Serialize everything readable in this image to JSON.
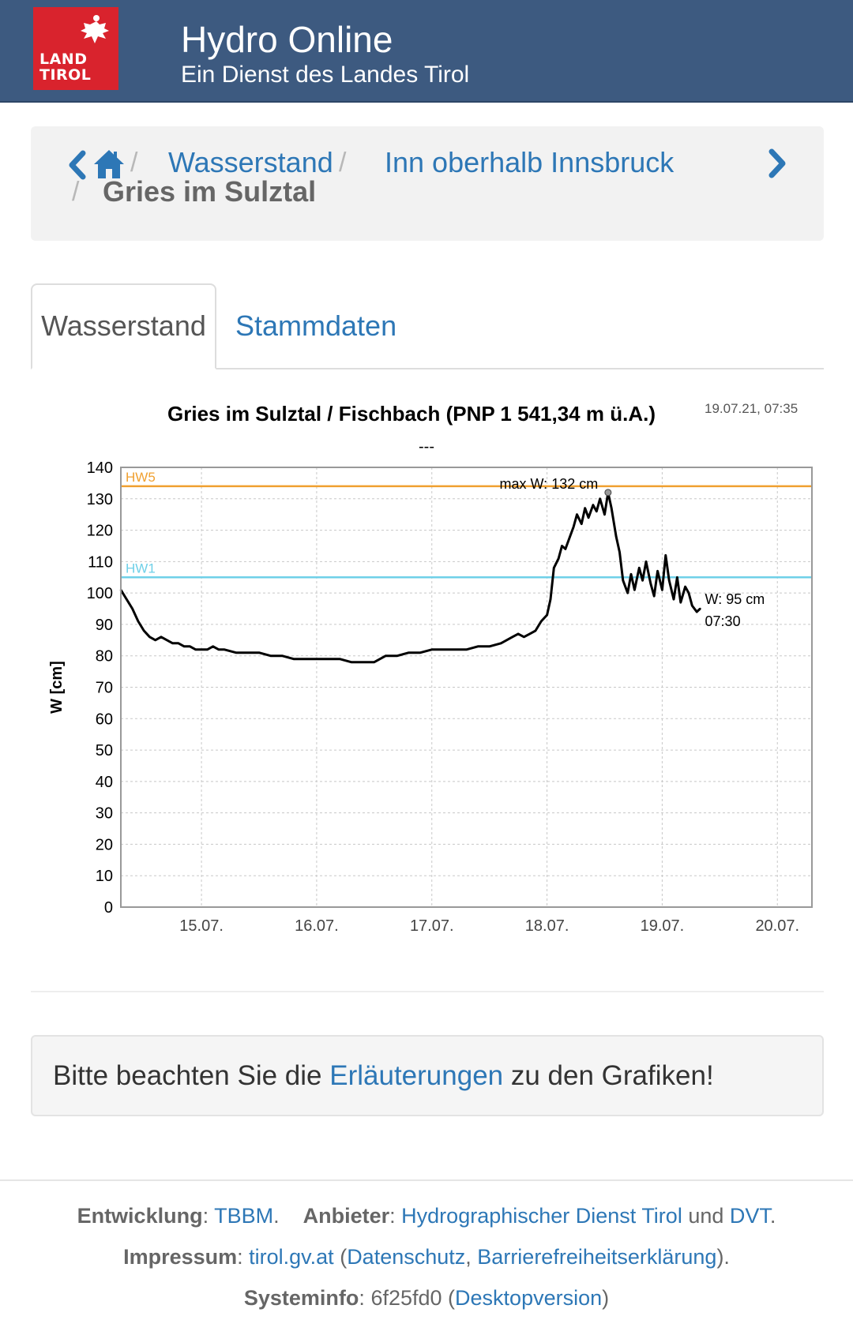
{
  "header": {
    "logo_text": "LAND TIROL",
    "logo_lines": [
      "LAND",
      "TIROL"
    ],
    "title": "Hydro Online",
    "subtitle": "Ein Dienst des Landes Tirol",
    "brand_color": "#d9232d",
    "bar_color": "#3d5a80"
  },
  "breadcrumb": {
    "prev_icon": "chevron-left-icon",
    "home_icon": "home-icon",
    "next_icon": "chevron-right-icon",
    "separator": "/",
    "items": [
      "Wasserstand",
      "Inn oberhalb Innsbruck"
    ],
    "current": "Gries im Sulztal"
  },
  "tabs": [
    {
      "label": "Wasserstand",
      "active": true
    },
    {
      "label": "Stammdaten",
      "active": false
    }
  ],
  "chart_data": {
    "type": "line",
    "title": "Gries im Sulztal / Fischbach (PNP 1 541,34 m ü.A.)",
    "subtitle": "---",
    "timestamp": "19.07.21, 07:35",
    "ylabel": "W [cm]",
    "xlabel": "",
    "ylim": [
      0,
      140
    ],
    "yticks": [
      "0",
      "10",
      "20",
      "30",
      "40",
      "50",
      "60",
      "70",
      "80",
      "90",
      "100",
      "110",
      "120",
      "130",
      "140"
    ],
    "xlim": [
      14.3,
      20.3
    ],
    "xticks": [
      {
        "label": "15.07.",
        "value": 15
      },
      {
        "label": "16.07.",
        "value": 16
      },
      {
        "label": "17.07.",
        "value": 17
      },
      {
        "label": "18.07.",
        "value": 18
      },
      {
        "label": "19.07.",
        "value": 19
      },
      {
        "label": "20.07.",
        "value": 20
      }
    ],
    "grid": true,
    "thresholds": [
      {
        "name": "HW5",
        "value": 134,
        "color": "#f0a030"
      },
      {
        "name": "HW1",
        "value": 105,
        "color": "#6fd0e8"
      }
    ],
    "series": [
      {
        "color": "#000000",
        "x": [
          14.3,
          14.35,
          14.4,
          14.45,
          14.5,
          14.55,
          14.6,
          14.65,
          14.7,
          14.75,
          14.8,
          14.85,
          14.9,
          14.95,
          15.0,
          15.05,
          15.1,
          15.15,
          15.2,
          15.3,
          15.4,
          15.5,
          15.6,
          15.7,
          15.8,
          15.9,
          16.0,
          16.1,
          16.2,
          16.3,
          16.4,
          16.5,
          16.6,
          16.7,
          16.8,
          16.9,
          17.0,
          17.1,
          17.2,
          17.3,
          17.4,
          17.5,
          17.6,
          17.7,
          17.75,
          17.8,
          17.85,
          17.9,
          17.95,
          18.0,
          18.03,
          18.06,
          18.1,
          18.13,
          18.16,
          18.2,
          18.23,
          18.26,
          18.3,
          18.33,
          18.36,
          18.4,
          18.43,
          18.46,
          18.5,
          18.53,
          18.56,
          18.6,
          18.63,
          18.66,
          18.7,
          18.73,
          18.76,
          18.8,
          18.83,
          18.86,
          18.9,
          18.93,
          18.96,
          19.0,
          19.03,
          19.06,
          19.1,
          19.13,
          19.16,
          19.2,
          19.23,
          19.26,
          19.3,
          19.33
        ],
        "y": [
          101,
          98,
          95,
          91,
          88,
          86,
          85,
          86,
          85,
          84,
          84,
          83,
          83,
          82,
          82,
          82,
          83,
          82,
          82,
          81,
          81,
          81,
          80,
          80,
          79,
          79,
          79,
          79,
          79,
          78,
          78,
          78,
          80,
          80,
          81,
          81,
          82,
          82,
          82,
          82,
          83,
          83,
          84,
          86,
          87,
          86,
          87,
          88,
          91,
          93,
          98,
          108,
          111,
          115,
          114,
          118,
          121,
          125,
          122,
          127,
          124,
          128,
          126,
          130,
          125,
          132,
          127,
          118,
          113,
          104,
          100,
          106,
          101,
          108,
          104,
          110,
          103,
          99,
          107,
          101,
          112,
          104,
          98,
          105,
          97,
          102,
          100,
          96,
          94,
          95
        ]
      }
    ],
    "annotations": {
      "max_label": "max W: 132 cm",
      "max_value": 132,
      "current_label": "W: 95 cm",
      "current_time": "07:30",
      "current_value": 95
    }
  },
  "note": {
    "before": "Bitte beachten Sie die ",
    "link": "Erläuterungen",
    "after": " zu den Grafiken!"
  },
  "footer": {
    "dev_label": "Entwicklung",
    "dev_link": "TBBM",
    "provider_label": "Anbieter",
    "provider_link1": "Hydrographischer Dienst Tirol",
    "provider_and": "und",
    "provider_link2": "DVT",
    "imprint_label": "Impressum",
    "imprint_link": "tirol.gv.at",
    "privacy_link": "Datenschutz",
    "accessibility_link": "Barrierefreiheitserklärung",
    "sysinfo_label": "Systeminfo",
    "sysinfo_value": "6f25fd0",
    "desktop_link": "Desktopversion"
  }
}
